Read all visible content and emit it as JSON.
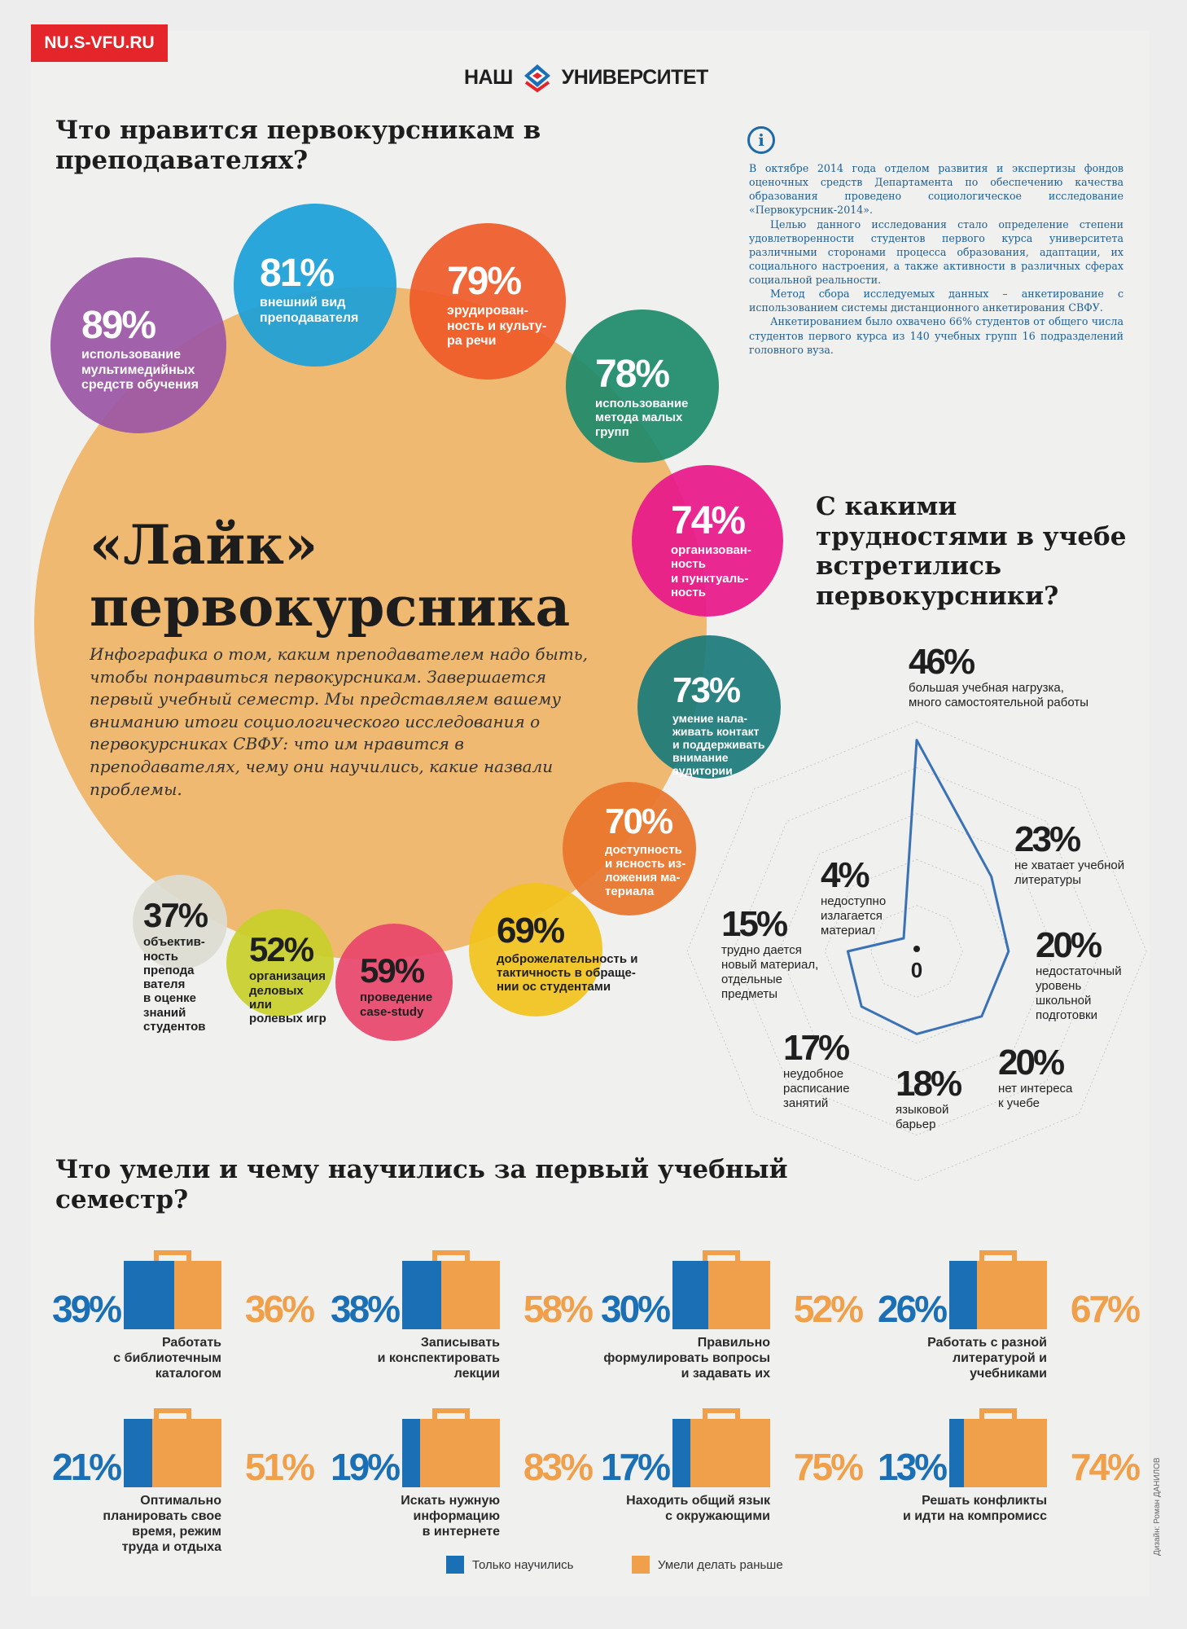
{
  "site_tag": "NU.S-VFU.RU",
  "brand": {
    "left": "НАШ",
    "right": "УНИВЕРСИТЕТ"
  },
  "section_likes": {
    "question": "Что нравится первокурсникам в преподавателях?"
  },
  "hero": {
    "title_line1": "«Лайк»",
    "title_line2": "первокурсника",
    "intro": "Инфографика о том, каким преподавателем надо быть, чтобы понравиться первокурсникам. Завершается первый учебный семестр. Мы представляем вашему вниманию итоги социологического исследования о первокурсниках СВФУ: что им нравится в преподавателях, чему они научились, какие назвали проблемы."
  },
  "info": {
    "icon": "info-icon",
    "p1": "В октябре 2014 года отделом развития и экспертизы фондов оценочных средств Департамента по обеспечению качества образования проведено социологическое исследование «Первокурсник-2014».",
    "p2": "Целью данного исследования стало определение степени удовлетворенности студентов первого курса университета различными сторонами процесса образования, адаптации, их социального настроения, а также активности в различных сферах социальной реальности.",
    "p3": "Метод сбора исследуемых данных – анкетирование с использованием системы дистанционного анкетирования СВФУ.",
    "p4": "Анкетированием было охвачено 66% студентов от общего числа студентов первого курса из 140 учебных групп 16 подразделений головного вуза."
  },
  "section_difficulties": {
    "question": "С какими трудностями в учебе встретились первокурсники?"
  },
  "section_skills": {
    "question": "Что умели и чему научились за первый учебный семестр?"
  },
  "legend": {
    "learned": "Только научились",
    "before": "Умели делать раньше"
  },
  "designer": "Дизайн: Роман ДАНИЛОВ",
  "colors": {
    "blue": "#1b6fb5",
    "orange": "#f0a04b",
    "big_circle": "#efb56a",
    "radar_line": "#3a72b5"
  },
  "chart_data": [
    {
      "type": "bubble",
      "title": "Что нравится первокурсникам в преподавателях?",
      "items": [
        {
          "value": 89,
          "pct": "89%",
          "label": "использование мультимедийных средств обучения",
          "lines": [
            "использование",
            "мультимедийных",
            "средств обучения"
          ],
          "color": "#9b56a5"
        },
        {
          "value": 81,
          "pct": "81%",
          "label": "внешний вид преподавателя",
          "lines": [
            "внешний вид",
            "преподавателя"
          ],
          "color": "#1aa0d8"
        },
        {
          "value": 79,
          "pct": "79%",
          "label": "эрудированность и культура речи",
          "lines": [
            "эрудирован-",
            "ность и культу-",
            "ра речи"
          ],
          "color": "#ef5a28"
        },
        {
          "value": 78,
          "pct": "78%",
          "label": "использование метода малых групп",
          "lines": [
            "использование",
            "метода малых",
            "групп"
          ],
          "color": "#1d8a6a"
        },
        {
          "value": 74,
          "pct": "74%",
          "label": "организованность и пунктуальность",
          "lines": [
            "организован-",
            "ность",
            "и пунктуаль-",
            "ность"
          ],
          "color": "#e8178a"
        },
        {
          "value": 73,
          "pct": "73%",
          "label": "умение налаживать контакт и поддерживать внимание аудитории",
          "lines": [
            "умение нала-",
            "живать контакт",
            "и поддерживать",
            "внимание",
            "аудитории"
          ],
          "color": "#1a7a7a"
        },
        {
          "value": 70,
          "pct": "70%",
          "label": "доступность и ясность изложения материала",
          "lines": [
            "доступность",
            "и ясность из-",
            "ложения ма-",
            "териала"
          ],
          "color": "#e8742a"
        },
        {
          "value": 69,
          "pct": "69%",
          "label": "доброжелательность и тактичность в обращении ос студентами",
          "lines": [
            "доброжелательность и",
            "тактичность в обраще-",
            "нии ос студентами"
          ],
          "color": "#f2c21c"
        },
        {
          "value": 59,
          "pct": "59%",
          "label": "проведение case-study",
          "lines": [
            "проведение",
            "case-study"
          ],
          "color": "#e8456a"
        },
        {
          "value": 52,
          "pct": "52%",
          "label": "организация деловых или ролевых игр",
          "lines": [
            "организация",
            "деловых",
            "или",
            "ролевых игр"
          ],
          "color": "#c9cf2a"
        },
        {
          "value": 37,
          "pct": "37%",
          "label": "объективность преподавателя в оценке знаний студентов",
          "lines": [
            "объектив-",
            "ность",
            "препода",
            "вателя",
            "в оценке",
            "знаний",
            "студентов"
          ],
          "color": "#dcdcd2"
        }
      ]
    },
    {
      "type": "radar",
      "title": "С какими трудностями в учебе встретились первокурсники?",
      "center_label": "0",
      "items": [
        {
          "value": 46,
          "pct": "46%",
          "label": "большая учебная нагрузка, много самостоятельной работы",
          "lines": [
            "большая учебная нагрузка,",
            "много самостоятельной работы"
          ]
        },
        {
          "value": 23,
          "pct": "23%",
          "label": "не хватает учебной литературы",
          "lines": [
            "не хватает учебной",
            "литературы"
          ]
        },
        {
          "value": 20,
          "pct": "20%",
          "label": "недостаточный уровень школьной подготовки",
          "lines": [
            "недостаточный",
            "уровень",
            "школьной",
            "подготовки"
          ]
        },
        {
          "value": 20,
          "pct": "20%",
          "label": "нет интереса к учебе",
          "lines": [
            "нет интереса",
            "к учебе"
          ]
        },
        {
          "value": 18,
          "pct": "18%",
          "label": "языковой барьер",
          "lines": [
            "языковой",
            "барьер"
          ]
        },
        {
          "value": 17,
          "pct": "17%",
          "label": "неудобное расписание занятий",
          "lines": [
            "неудобное",
            "расписание",
            "занятий"
          ]
        },
        {
          "value": 15,
          "pct": "15%",
          "label": "трудно дается новый материал, отдельные предметы",
          "lines": [
            "трудно дается",
            "новый материал,",
            "отдельные",
            "предметы"
          ]
        },
        {
          "value": 4,
          "pct": "4%",
          "label": "недоступно излагается материал",
          "lines": [
            "недоступно",
            "излагается",
            "материал"
          ]
        }
      ]
    },
    {
      "type": "paired-bar",
      "title": "Что умели и чему научились за первый учебный семестр?",
      "series_names": [
        "Только научились",
        "Умели делать раньше"
      ],
      "items": [
        {
          "learned": 39,
          "before": 36,
          "learned_pct": "39%",
          "before_pct": "36%",
          "label": "Работать с библиотечным каталогом",
          "lines": [
            "Работать",
            "с библиотечным",
            "каталогом"
          ]
        },
        {
          "learned": 38,
          "before": 58,
          "learned_pct": "38%",
          "before_pct": "58%",
          "label": "Записывать и конспектировать лекции",
          "lines": [
            "Записывать",
            "и конспектировать",
            "лекции"
          ]
        },
        {
          "learned": 30,
          "before": 52,
          "learned_pct": "30%",
          "before_pct": "52%",
          "label": "Правильно формулировать вопросы и задавать их",
          "lines": [
            "Правильно",
            "формулировать вопросы",
            "и задавать их"
          ]
        },
        {
          "learned": 26,
          "before": 67,
          "learned_pct": "26%",
          "before_pct": "67%",
          "label": "Работать с разной литературой и учебниками",
          "lines": [
            "Работать с разной",
            "литературой и учебниками"
          ]
        },
        {
          "learned": 21,
          "before": 51,
          "learned_pct": "21%",
          "before_pct": "51%",
          "label": "Оптимально планировать свое время, режим труда и отдыха",
          "lines": [
            "Оптимально",
            "планировать свое",
            "время, режим",
            "труда и отдыха"
          ]
        },
        {
          "learned": 19,
          "before": 83,
          "learned_pct": "19%",
          "before_pct": "83%",
          "label": "Искать нужную информацию в интернете",
          "lines": [
            "Искать нужную",
            "информацию",
            "в интернете"
          ]
        },
        {
          "learned": 17,
          "before": 75,
          "learned_pct": "17%",
          "before_pct": "75%",
          "label": "Находить общий язык с окружающими",
          "lines": [
            "Находить общий язык",
            "с окружающими"
          ]
        },
        {
          "learned": 13,
          "before": 74,
          "learned_pct": "13%",
          "before_pct": "74%",
          "label": "Решать конфликты и идти на компромисс",
          "lines": [
            "Решать конфликты",
            "и идти на компромисс"
          ]
        }
      ]
    }
  ]
}
